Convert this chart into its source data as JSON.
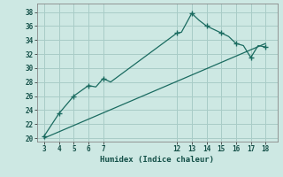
{
  "xlabel": "Humidex (Indice chaleur)",
  "background_color": "#cde8e3",
  "grid_color": "#a8ccc7",
  "line_color": "#1a6b60",
  "curve_x": [
    3,
    4,
    5,
    6,
    6.5,
    7,
    7.5,
    12,
    12.3,
    13,
    13.5,
    14,
    15,
    15.5,
    16,
    16.5,
    17,
    17.5,
    18
  ],
  "curve_y": [
    20.3,
    23.5,
    26.0,
    27.5,
    27.3,
    28.5,
    28.0,
    35.0,
    35.1,
    37.8,
    36.8,
    36.0,
    35.0,
    34.5,
    33.5,
    33.2,
    31.5,
    33.2,
    33.0
  ],
  "line_x": [
    3,
    18
  ],
  "line_y": [
    20.0,
    33.5
  ],
  "xticks": [
    3,
    4,
    5,
    6,
    7,
    12,
    13,
    14,
    15,
    16,
    17,
    18
  ],
  "yticks": [
    20,
    22,
    24,
    26,
    28,
    30,
    32,
    34,
    36,
    38
  ],
  "xlim": [
    2.5,
    18.8
  ],
  "ylim": [
    19.5,
    39.2
  ],
  "marker_x": [
    3,
    4,
    5,
    6,
    7,
    12,
    13,
    14,
    15,
    16,
    17,
    18
  ],
  "marker_y": [
    20.3,
    23.5,
    26.0,
    27.5,
    28.5,
    35.0,
    37.8,
    36.0,
    35.0,
    33.5,
    31.5,
    33.0
  ]
}
